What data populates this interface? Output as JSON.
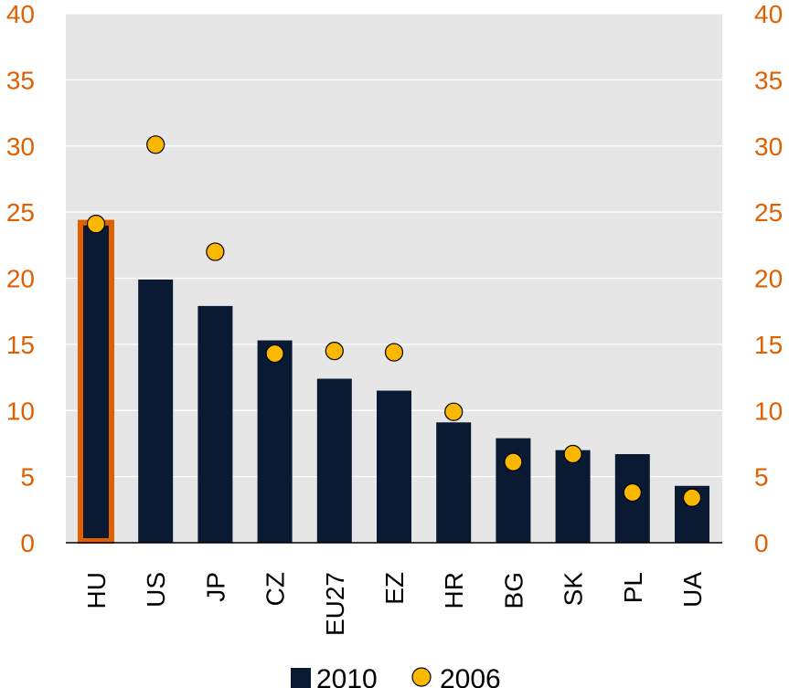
{
  "chart_data": {
    "type": "bar",
    "categories": [
      "HU",
      "US",
      "JP",
      "CZ",
      "EU27",
      "EZ",
      "HR",
      "BG",
      "SK",
      "PL",
      "UA"
    ],
    "series": [
      {
        "name": "2010",
        "kind": "bar",
        "values": [
          24.0,
          19.9,
          17.9,
          15.3,
          12.4,
          11.5,
          9.1,
          7.9,
          7.0,
          6.7,
          4.3
        ]
      },
      {
        "name": "2006",
        "kind": "marker",
        "values": [
          24.1,
          30.1,
          22.0,
          14.3,
          14.5,
          14.4,
          9.9,
          6.1,
          6.7,
          3.8,
          3.4
        ]
      }
    ],
    "highlight_category": "HU",
    "ylim": [
      0,
      40
    ],
    "yticks": [
      "0",
      "5",
      "10",
      "15",
      "20",
      "25",
      "30",
      "35",
      "40"
    ],
    "grid": true,
    "legend_position": "bottom",
    "colors": {
      "bar": "#0b1a33",
      "marker": "#fbb800",
      "marker_stroke": "#000000",
      "highlight": "#e06000",
      "axis_labels": "#e06000",
      "plot_bg": "#e6e6e6",
      "grid": "#ffffff"
    }
  }
}
